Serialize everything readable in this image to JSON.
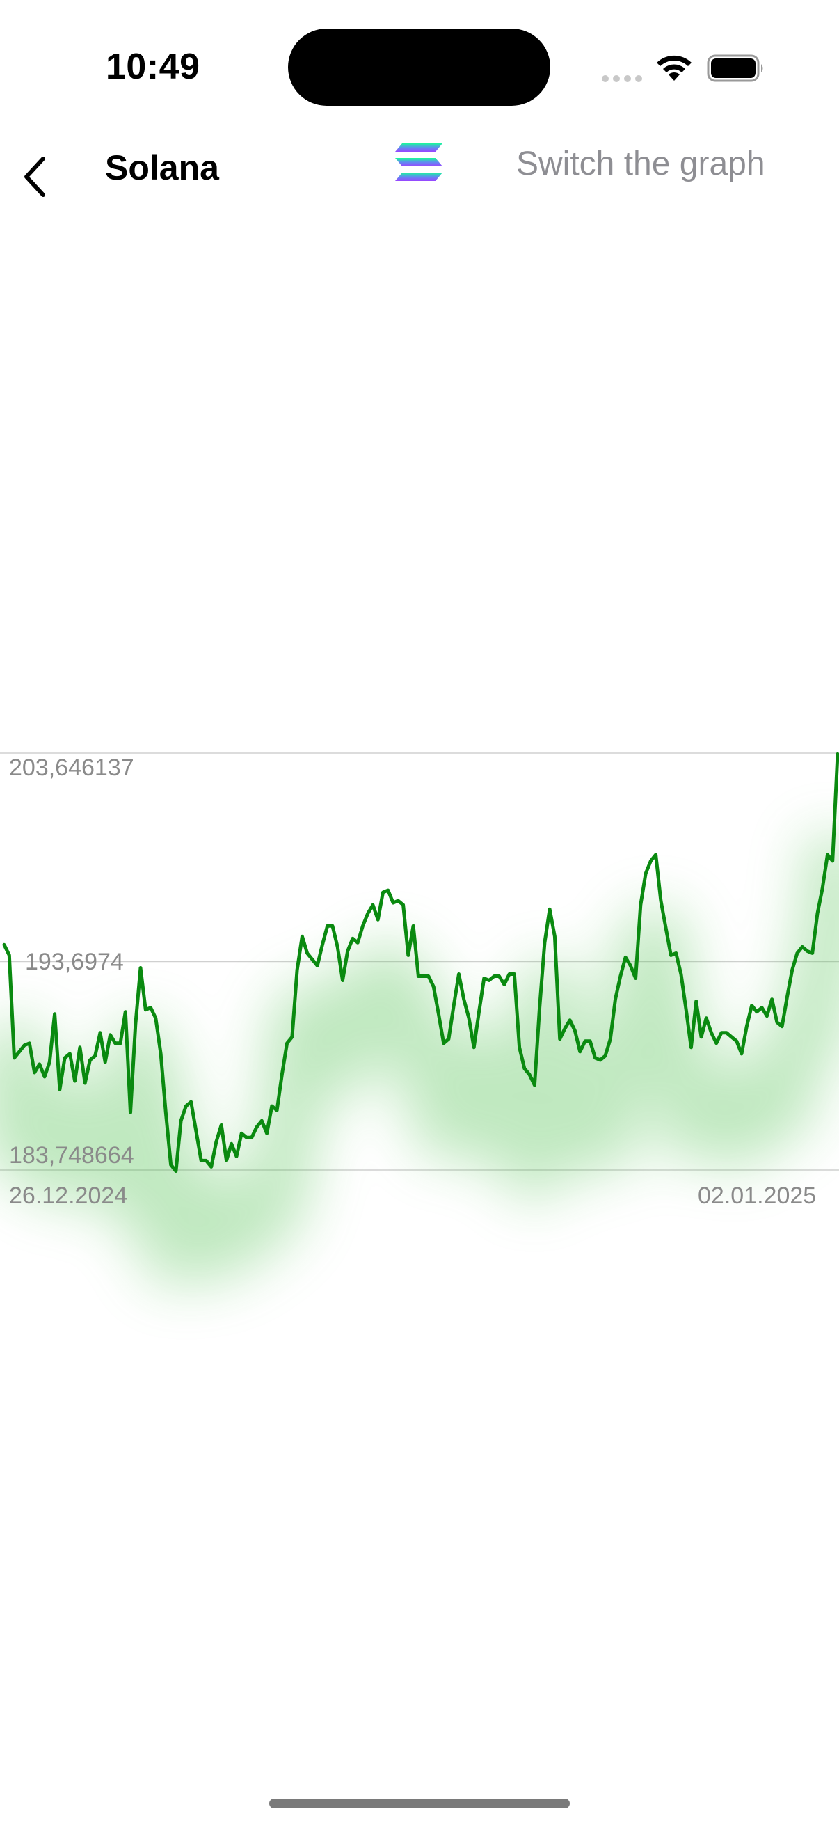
{
  "status_bar": {
    "time": "10:49"
  },
  "nav": {
    "title": "Solana",
    "switch_label": "Switch the graph",
    "back_icon": "chevron-left-icon",
    "logo_icon": "solana-logo-icon"
  },
  "colors": {
    "line": "#0a8a10",
    "glow": "#4cbf4c",
    "grid": "#d0d0d0",
    "label": "#8a8a8a",
    "logo_top": "#19fb9b",
    "logo_bottom": "#9945ff"
  },
  "chart_data": {
    "type": "line",
    "y_tick_labels": [
      "203,646137",
      "193,6974",
      "183,748664"
    ],
    "y_ticks": [
      203.646137,
      193.6974,
      183.748664
    ],
    "ylim": [
      183.748664,
      203.646137
    ],
    "x_start_label": "26.12.2024",
    "x_end_label": "02.01.2025",
    "grid": true,
    "series": [
      {
        "values": [
          194.5,
          194.0,
          189.1,
          189.4,
          189.7,
          189.8,
          188.4,
          188.8,
          188.2,
          188.9,
          191.2,
          187.6,
          189.1,
          189.3,
          188.0,
          189.6,
          187.9,
          189.0,
          189.2,
          190.3,
          188.9,
          190.2,
          189.8,
          189.8,
          191.3,
          186.5,
          190.7,
          193.4,
          191.4,
          191.5,
          191.0,
          189.3,
          186.5,
          184.0,
          183.7,
          186.1,
          186.8,
          187.0,
          185.6,
          184.2,
          184.2,
          183.9,
          185.1,
          185.9,
          184.2,
          185.0,
          184.4,
          185.5,
          185.3,
          185.3,
          185.8,
          186.1,
          185.5,
          186.8,
          186.6,
          188.3,
          189.8,
          190.1,
          193.3,
          194.9,
          194.1,
          193.8,
          193.5,
          194.5,
          195.4,
          195.4,
          194.4,
          192.8,
          194.2,
          194.8,
          194.6,
          195.4,
          196.0,
          196.4,
          195.7,
          197.0,
          197.1,
          196.5,
          196.6,
          196.4,
          194.0,
          195.4,
          193.0,
          193.0,
          193.0,
          192.5,
          191.2,
          189.8,
          190.0,
          191.6,
          193.1,
          191.9,
          191.0,
          189.6,
          191.3,
          192.9,
          192.8,
          193.0,
          193.0,
          192.6,
          193.1,
          193.1,
          189.6,
          188.6,
          188.3,
          187.8,
          191.5,
          194.6,
          196.2,
          194.9,
          190.0,
          190.5,
          190.9,
          190.4,
          189.4,
          189.9,
          189.9,
          189.1,
          189.0,
          189.2,
          190.0,
          191.9,
          193.0,
          193.9,
          193.5,
          192.9,
          196.4,
          197.9,
          198.5,
          198.8,
          196.6,
          195.3,
          194.0,
          194.1,
          193.1,
          191.4,
          189.6,
          191.8,
          190.1,
          191.0,
          190.3,
          189.8,
          190.3,
          190.3,
          190.1,
          189.9,
          189.3,
          190.6,
          191.6,
          191.3,
          191.5,
          191.1,
          191.9,
          190.8,
          190.6,
          192.0,
          193.3,
          194.1,
          194.4,
          194.2,
          194.1,
          196.0,
          197.2,
          198.8,
          198.5,
          203.6
        ]
      }
    ]
  }
}
